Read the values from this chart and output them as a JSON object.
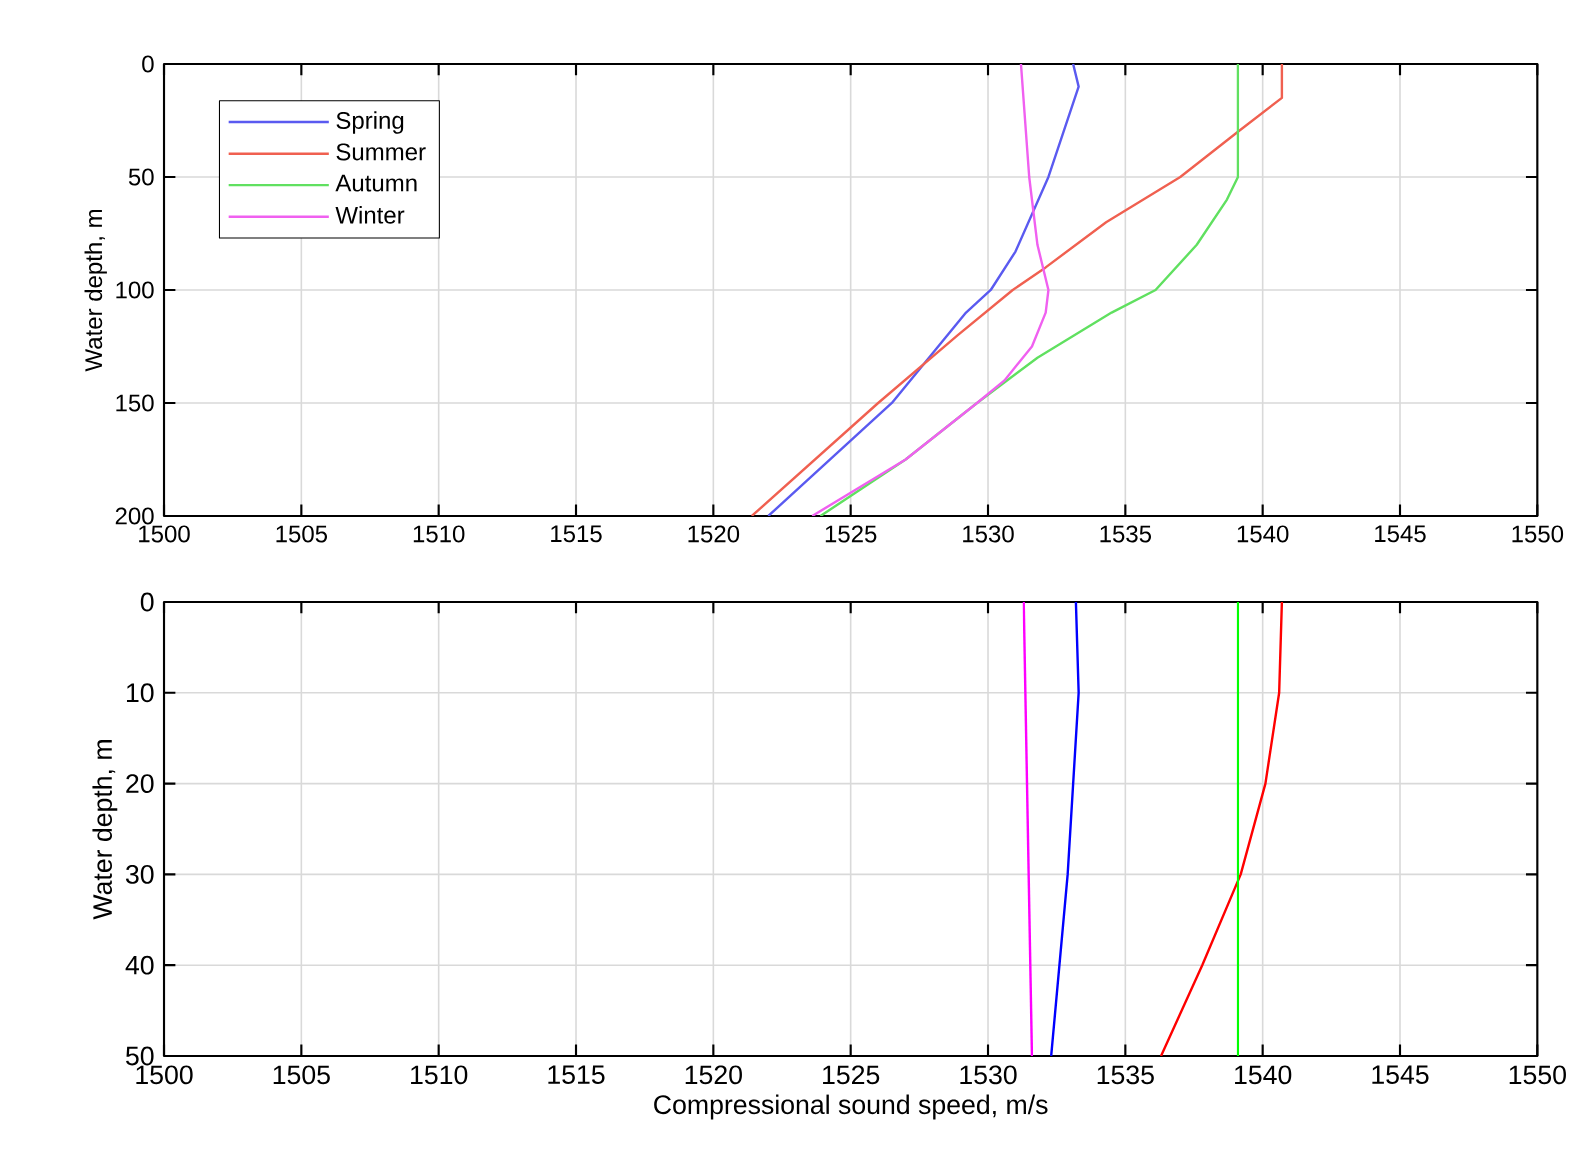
{
  "chart_data": [
    {
      "type": "line",
      "ylabel": "Water depth, m",
      "xlim": [
        1500,
        1550
      ],
      "xticks": [
        1500,
        1505,
        1510,
        1515,
        1520,
        1525,
        1530,
        1535,
        1540,
        1545,
        1550
      ],
      "ylim": [
        200,
        0
      ],
      "yticks": [
        0,
        50,
        100,
        150,
        200
      ],
      "grid": true,
      "legend": "top left",
      "marker": "none",
      "line_style": "solid",
      "series": [
        {
          "name": "Spring",
          "color": "#5a5af0",
          "x": [
            1533.1,
            1533.3,
            1532.2,
            1531.0,
            1530.1,
            1529.2,
            1526.5,
            1522.0
          ],
          "values": [
            0,
            10,
            50,
            83,
            100,
            110,
            150,
            200
          ]
        },
        {
          "name": "Summer",
          "color": "#f06050",
          "x": [
            1540.7,
            1540.7,
            1539.1,
            1537.0,
            1534.3,
            1532.1,
            1530.9,
            1528.9,
            1526.0,
            1521.4
          ],
          "values": [
            0,
            15,
            30,
            50,
            70,
            90,
            100,
            120,
            150,
            200
          ]
        },
        {
          "name": "Autumn",
          "color": "#60e060",
          "x": [
            1539.1,
            1539.1,
            1538.7,
            1537.6,
            1536.1,
            1534.5,
            1531.8,
            1529.6,
            1527.0,
            1523.9
          ],
          "values": [
            0,
            50,
            60,
            80,
            100,
            110,
            130,
            150,
            175,
            200
          ]
        },
        {
          "name": "Winter",
          "color": "#f060f0",
          "x": [
            1531.2,
            1531.5,
            1531.8,
            1532.2,
            1532.1,
            1531.6,
            1530.6,
            1529.6,
            1527.0,
            1523.6
          ],
          "values": [
            0,
            50,
            80,
            100,
            110,
            125,
            140,
            150,
            175,
            200
          ]
        }
      ]
    },
    {
      "type": "line",
      "xlabel": "Compressional sound speed, m/s",
      "ylabel": "Water depth, m",
      "xlim": [
        1500,
        1550
      ],
      "xticks": [
        1500,
        1505,
        1510,
        1515,
        1520,
        1525,
        1530,
        1535,
        1540,
        1545,
        1550
      ],
      "ylim": [
        50,
        0
      ],
      "yticks": [
        0,
        10,
        20,
        30,
        40,
        50
      ],
      "grid": true,
      "marker": "none",
      "line_style": "solid",
      "series": [
        {
          "color": "#0000ff",
          "x": [
            1533.2,
            1533.3,
            1532.9,
            1532.3
          ],
          "values": [
            0,
            10,
            30,
            50
          ]
        },
        {
          "color": "#ff0000",
          "x": [
            1540.7,
            1540.6,
            1540.1,
            1539.2,
            1537.8,
            1536.3
          ],
          "values": [
            0,
            10,
            20,
            30,
            40,
            50
          ]
        },
        {
          "color": "#00ff00",
          "x": [
            1539.1,
            1539.1
          ],
          "values": [
            0,
            50
          ]
        },
        {
          "color": "#ff00ff",
          "x": [
            1531.3,
            1531.6
          ],
          "values": [
            0,
            50
          ]
        }
      ]
    }
  ]
}
